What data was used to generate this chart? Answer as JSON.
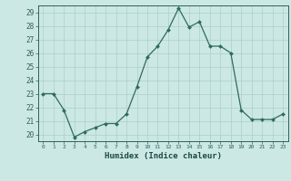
{
  "x": [
    0,
    1,
    2,
    3,
    4,
    5,
    6,
    7,
    8,
    9,
    10,
    11,
    12,
    13,
    14,
    15,
    16,
    17,
    18,
    19,
    20,
    21,
    22,
    23
  ],
  "y": [
    23,
    23,
    21.8,
    19.8,
    20.2,
    20.5,
    20.8,
    20.8,
    21.5,
    23.5,
    25.7,
    26.5,
    27.7,
    29.3,
    27.9,
    28.3,
    26.5,
    26.5,
    26.0,
    21.8,
    21.1,
    21.1,
    21.1,
    21.5
  ],
  "xlabel": "Humidex (Indice chaleur)",
  "xlim": [
    -0.5,
    23.5
  ],
  "ylim": [
    19.5,
    29.5
  ],
  "yticks": [
    20,
    21,
    22,
    23,
    24,
    25,
    26,
    27,
    28,
    29
  ],
  "xticks": [
    0,
    1,
    2,
    3,
    4,
    5,
    6,
    7,
    8,
    9,
    10,
    11,
    12,
    13,
    14,
    15,
    16,
    17,
    18,
    19,
    20,
    21,
    22,
    23
  ],
  "line_color": "#2e6b5e",
  "marker_color": "#2e6b5e",
  "bg_color": "#cce8e4",
  "grid_color": "#aacfcb",
  "tick_color": "#2e5f5a",
  "label_color": "#1a4a44"
}
